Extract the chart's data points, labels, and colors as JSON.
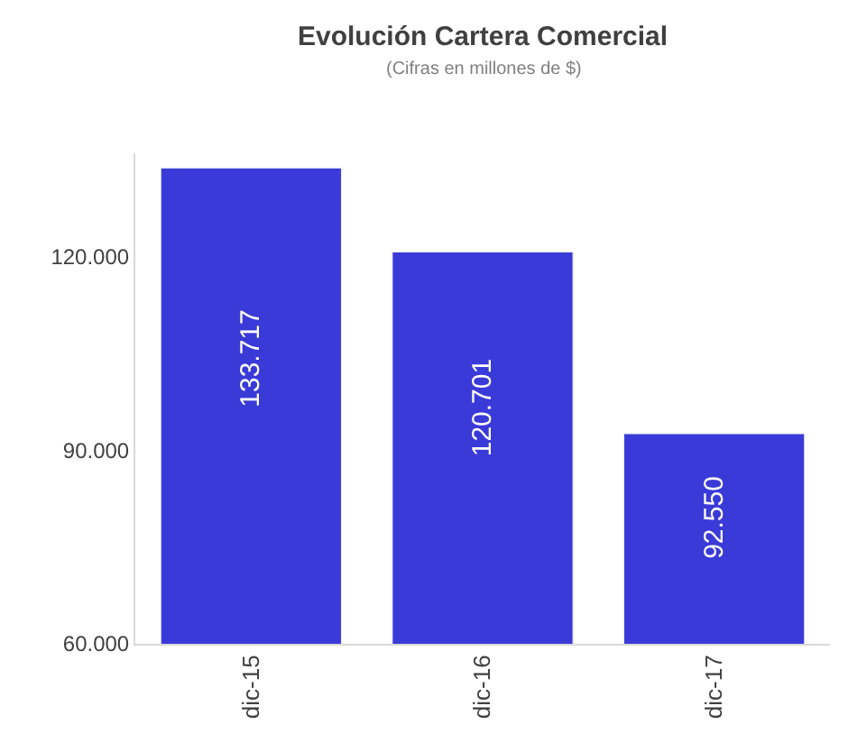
{
  "chart_data": {
    "type": "bar",
    "title": "Evolución Cartera Comercial",
    "subtitle": "(Cifras en millones de $)",
    "categories": [
      "dic-15",
      "dic-16",
      "dic-17"
    ],
    "values": [
      133717,
      120701,
      92550
    ],
    "value_labels": [
      "133.717",
      "120.701",
      "92.550"
    ],
    "color": "#3a3ad8",
    "ylim": [
      60000,
      136000
    ],
    "yticks": [
      {
        "value": 60000,
        "label": "60.000"
      },
      {
        "value": 90000,
        "label": "90.000"
      },
      {
        "value": 120000,
        "label": "120.000"
      }
    ],
    "legend": false
  }
}
